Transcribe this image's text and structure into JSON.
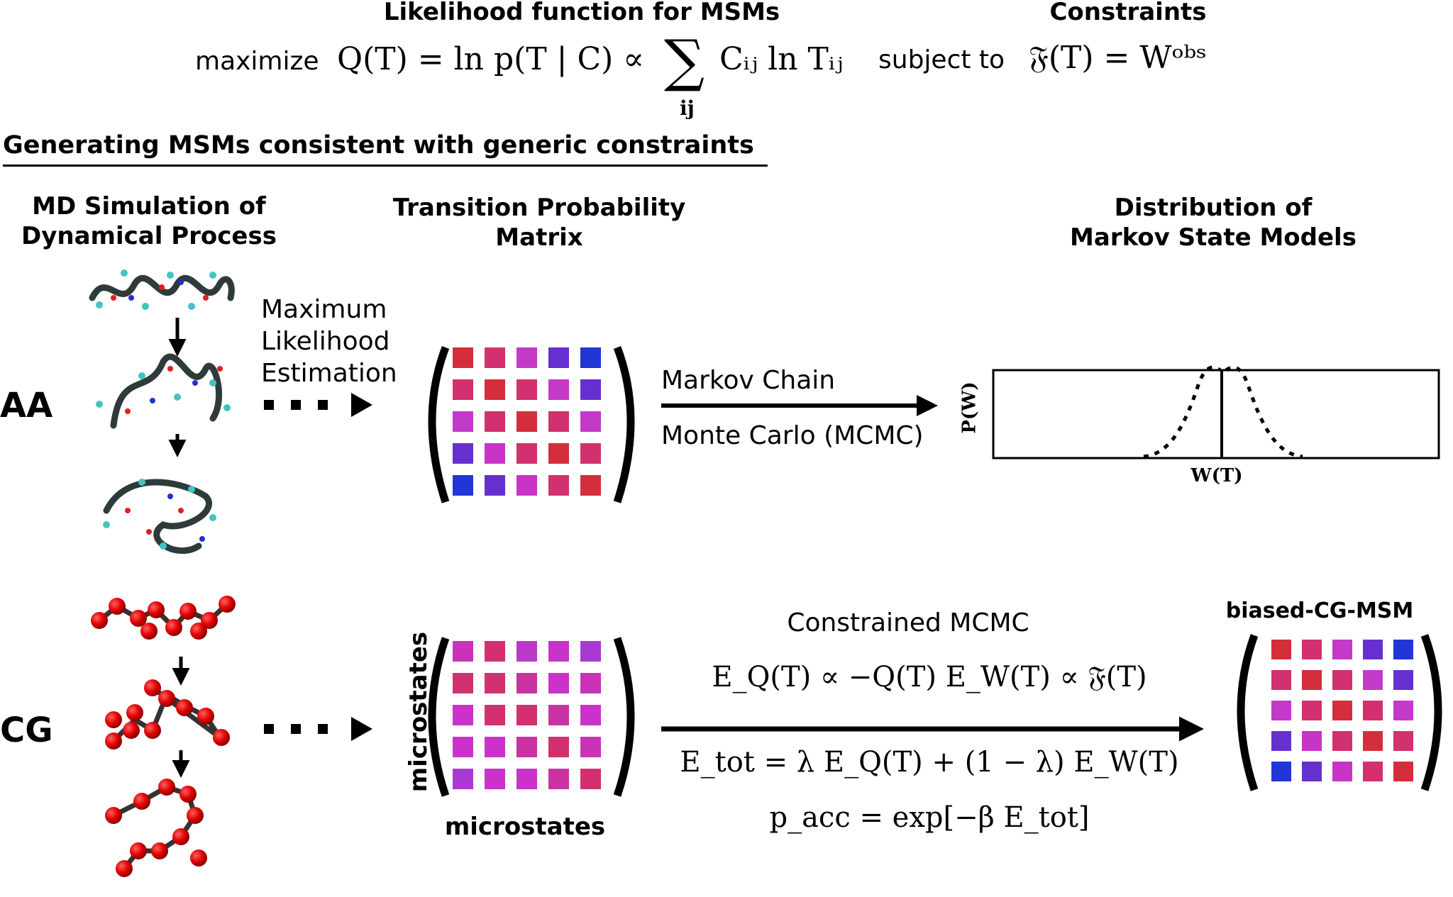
{
  "header": {
    "likelihood_title": "Likelihood function for MSMs",
    "constraints_title": "Constraints",
    "maximize": "maximize",
    "q_equation": "Q(T) = ln p(T | C) ∝",
    "sum_symbol": "∑",
    "sum_index": "ij",
    "sum_term": "Cᵢⱼ ln Tᵢⱼ",
    "subject_to": "subject to",
    "constraint_equation": "𝔉(T) = Wᵒᵇˢ"
  },
  "section_title": "Generating MSMs consistent with generic constraints",
  "columns": {
    "md_title_1": "MD Simulation of",
    "md_title_2": "Dynamical Process",
    "tpm_title_1": "Transition Probability",
    "tpm_title_2": "Matrix",
    "dist_title_1": "Distribution of",
    "dist_title_2": "Markov State Models"
  },
  "aa_row": {
    "label": "AA",
    "mle_1": "Maximum",
    "mle_2": "Likelihood",
    "mle_3": "Estimation",
    "mcmc_1": "Markov Chain",
    "mcmc_2": "Monte Carlo (MCMC)",
    "plot_ylabel": "P(W)",
    "plot_xlabel": "W(T)"
  },
  "cg_row": {
    "label": "CG",
    "axis_label_y": "microstates",
    "axis_label_x": "microstates",
    "constrained_title": "Constrained MCMC",
    "energy_eq": "E_Q(T) ∝ −Q(T)   E_W(T) ∝ 𝔉(T)",
    "total_eq": "E_tot = λ E_Q(T) + (1 − λ) E_W(T)",
    "acc_eq": "p_acc = exp[−β E_tot]",
    "result_title": "biased-CG-MSM"
  },
  "colors": {
    "red": "#d42e3c",
    "rose": "#d2306e",
    "magenta": "#c436c8",
    "pink_purple": "#c933b8",
    "violet": "#6630d0",
    "blue": "#2236d6"
  },
  "matrices": {
    "aa_tpm": [
      [
        "#d42e3c",
        "#d2306e",
        "#c33ac9",
        "#6630d0",
        "#2236d6"
      ],
      [
        "#d2306e",
        "#d42e3c",
        "#d2306e",
        "#c33ac9",
        "#6630d0"
      ],
      [
        "#c33ac9",
        "#d2306e",
        "#d42e3c",
        "#d2306e",
        "#c33ac9"
      ],
      [
        "#6630d0",
        "#c933c8",
        "#d2306e",
        "#d42e3c",
        "#d2306e"
      ],
      [
        "#2236d6",
        "#6630d0",
        "#c933c8",
        "#d2306e",
        "#d42e3c"
      ]
    ],
    "cg_tpm": [
      [
        "#c933b8",
        "#d2306e",
        "#b83ac6",
        "#c933c8",
        "#a83ad0"
      ],
      [
        "#d2306e",
        "#d2306e",
        "#c933a0",
        "#c933c8",
        "#c933b8"
      ],
      [
        "#c933c8",
        "#d2306e",
        "#d2306e",
        "#c933a0",
        "#c933c8"
      ],
      [
        "#c933c8",
        "#c933c8",
        "#c933a0",
        "#d2306e",
        "#c933b8"
      ],
      [
        "#a83ad0",
        "#c933c8",
        "#c933c8",
        "#c933a0",
        "#d2306e"
      ]
    ],
    "biased_cg_msm": [
      [
        "#d42e3c",
        "#d2306e",
        "#c33ac9",
        "#6630d0",
        "#2236d6"
      ],
      [
        "#d2306e",
        "#d42e3c",
        "#d2306e",
        "#c33ac9",
        "#6630d0"
      ],
      [
        "#c33ac9",
        "#d2306e",
        "#d42e3c",
        "#d2306e",
        "#c33ac9"
      ],
      [
        "#6630d0",
        "#c933c8",
        "#d2306e",
        "#d42e3c",
        "#d2306e"
      ],
      [
        "#2236d6",
        "#6630d0",
        "#c933c8",
        "#d2306e",
        "#d42e3c"
      ]
    ]
  }
}
